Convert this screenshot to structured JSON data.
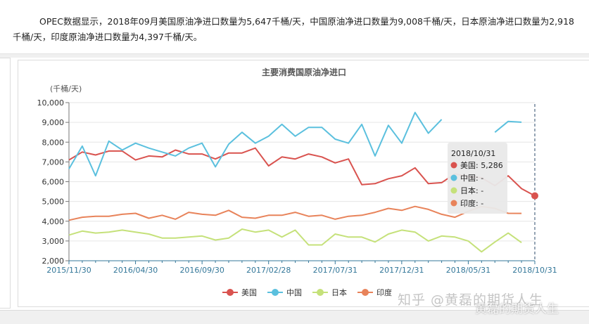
{
  "article": {
    "text": "OPEC数据显示，2018年09月美国原油净进口数量为5,647千桶/天，中国原油净进口数量为9,008千桶/天，日本原油净进口数量为2,918千桶/天，印度原油净进口数量为4,397千桶/天。"
  },
  "watermark": {
    "text": "知乎 @黄磊的期货人生",
    "text2": "黄磊的期货人生"
  },
  "colors": {
    "us": "#d9534f",
    "china": "#5bc0de",
    "japan": "#c5e17a",
    "india": "#e8835a",
    "axis": "#337799"
  },
  "chart_data": {
    "type": "line",
    "title": "主要消费国原油净进口",
    "ylabel": "(千桶/天)",
    "xlabel": "",
    "ylim": [
      2000,
      10000
    ],
    "yticks": [
      2000,
      3000,
      4000,
      5000,
      6000,
      7000,
      8000,
      9000,
      10000
    ],
    "ytick_labels": [
      "2,000",
      "3,000",
      "4,000",
      "5,000",
      "6,000",
      "7,000",
      "8,000",
      "9,000",
      "10,000"
    ],
    "x_tick_labels": [
      "2015/11/30",
      "2016/04/30",
      "2016/09/30",
      "2017/02/28",
      "2017/07/31",
      "2017/12/31",
      "2018/05/31",
      "2018/10/31"
    ],
    "x_tick_months": [
      "2015-11",
      "2016-04",
      "2016-09",
      "2017-02",
      "2017-07",
      "2017-12",
      "2018-05",
      "2018-10"
    ],
    "months": [
      "2015-11",
      "2015-12",
      "2016-01",
      "2016-02",
      "2016-03",
      "2016-04",
      "2016-05",
      "2016-06",
      "2016-07",
      "2016-08",
      "2016-09",
      "2016-10",
      "2016-11",
      "2016-12",
      "2017-01",
      "2017-02",
      "2017-03",
      "2017-04",
      "2017-05",
      "2017-06",
      "2017-07",
      "2017-08",
      "2017-09",
      "2017-10",
      "2017-11",
      "2017-12",
      "2018-01",
      "2018-02",
      "2018-03",
      "2018-04",
      "2018-05",
      "2018-06",
      "2018-07",
      "2018-08",
      "2018-09",
      "2018-10"
    ],
    "series": [
      {
        "name": "美国",
        "key": "us",
        "values": [
          7100,
          7500,
          7350,
          7550,
          7550,
          7100,
          7300,
          7250,
          7600,
          7400,
          7400,
          7150,
          7450,
          7450,
          7700,
          6800,
          7250,
          7150,
          7400,
          7250,
          6950,
          7150,
          5850,
          5900,
          6150,
          6300,
          6700,
          5900,
          5950,
          6400,
          6250,
          6200,
          5800,
          6300,
          5647,
          5286
        ]
      },
      {
        "name": "中国",
        "key": "china",
        "values": [
          6650,
          7800,
          6300,
          8050,
          7600,
          7950,
          7700,
          7500,
          7300,
          7700,
          7950,
          6750,
          7900,
          8500,
          7950,
          8300,
          8900,
          8300,
          8750,
          8750,
          8150,
          7950,
          8900,
          7300,
          8850,
          7950,
          9500,
          8450,
          9150,
          null,
          null,
          null,
          8500,
          9050,
          9008,
          null
        ]
      },
      {
        "name": "日本",
        "key": "japan",
        "values": [
          3300,
          3500,
          3400,
          3450,
          3550,
          3450,
          3350,
          3150,
          3150,
          3200,
          3250,
          3050,
          3150,
          3600,
          3450,
          3550,
          3200,
          3550,
          2800,
          2800,
          3350,
          3200,
          3200,
          2950,
          3350,
          3550,
          3450,
          3000,
          3250,
          3200,
          3000,
          2450,
          2950,
          3400,
          2918,
          null
        ]
      },
      {
        "name": "印度",
        "key": "india",
        "values": [
          4050,
          4200,
          4250,
          4250,
          4350,
          4400,
          4150,
          4300,
          4100,
          4450,
          4350,
          4300,
          4550,
          4200,
          4150,
          4300,
          4300,
          4450,
          4250,
          4300,
          4100,
          4250,
          4300,
          4450,
          4650,
          4550,
          4750,
          4600,
          4350,
          4200,
          4500,
          4750,
          4650,
          4400,
          4397,
          null
        ]
      }
    ],
    "grid": "horizontal",
    "legend_position": "bottom"
  },
  "tooltip": {
    "date": "2018/10/31",
    "rows": [
      {
        "name": "美国",
        "value": "5,286",
        "key": "us"
      },
      {
        "name": "中国",
        "value": "-",
        "key": "china"
      },
      {
        "name": "日本",
        "value": "-",
        "key": "japan"
      },
      {
        "name": "印度",
        "value": "-",
        "key": "india"
      }
    ]
  }
}
